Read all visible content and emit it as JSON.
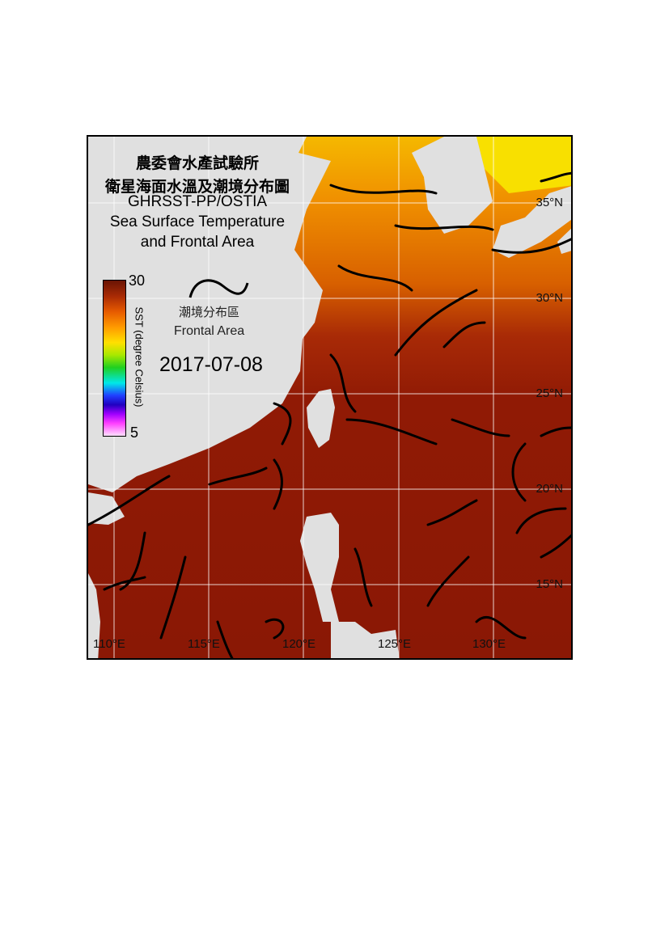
{
  "title": {
    "line1": "農委會水產試驗所",
    "line2": "衛星海面水溫及潮境分布圖",
    "line3": "GHRSST-PP/OSTIA",
    "line4": "Sea Surface Temperature",
    "line5": "and Frontal Area"
  },
  "colorbar": {
    "max": "30",
    "min": "5",
    "label": "SST (degree Celsius)",
    "range": [
      5,
      30
    ]
  },
  "frontal_legend": {
    "zh": "潮境分布區",
    "en": "Frontal Area"
  },
  "date": "2017-07-08",
  "lat_labels": [
    "35°N",
    "30°N",
    "25°N",
    "20°N",
    "15°N"
  ],
  "lon_labels": [
    "110°E",
    "115°E",
    "120°E",
    "125°E",
    "130°E"
  ],
  "colors": {
    "land": "#e0e0e0",
    "warm_sea": "#8f1a05",
    "cool_sea": "#f0a000",
    "front": "#000000",
    "grid": "#ffffff"
  }
}
